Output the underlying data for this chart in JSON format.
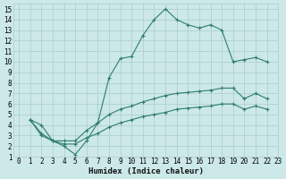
{
  "title": "",
  "xlabel": "Humidex (Indice chaleur)",
  "bg_color": "#cce8e8",
  "grid_color": "#aacccc",
  "line_color": "#2e7d6e",
  "xlim": [
    -0.5,
    23
  ],
  "ylim": [
    1,
    15.5
  ],
  "xticks": [
    0,
    1,
    2,
    3,
    4,
    5,
    6,
    7,
    8,
    9,
    10,
    11,
    12,
    13,
    14,
    15,
    16,
    17,
    18,
    19,
    20,
    21,
    22,
    23
  ],
  "yticks": [
    1,
    2,
    3,
    4,
    5,
    6,
    7,
    8,
    9,
    10,
    11,
    12,
    13,
    14,
    15
  ],
  "line1_x": [
    1,
    2,
    3,
    4,
    5,
    6,
    7,
    8,
    9,
    10,
    11,
    12,
    13,
    14,
    15,
    16,
    17,
    18,
    19,
    20,
    21,
    22
  ],
  "line1_y": [
    4.5,
    4.0,
    2.5,
    2.0,
    1.2,
    2.5,
    4.2,
    8.5,
    10.3,
    10.5,
    12.5,
    14.0,
    15.0,
    14.0,
    13.5,
    13.2,
    13.5,
    13.0,
    10.0,
    10.2,
    10.4,
    10.0
  ],
  "line2_x": [
    1,
    2,
    3,
    4,
    5,
    6,
    7,
    8,
    9,
    10,
    11,
    12,
    13,
    14,
    15,
    16,
    17,
    18,
    19,
    20,
    21,
    22
  ],
  "line2_y": [
    4.5,
    3.2,
    2.5,
    2.5,
    2.5,
    3.5,
    4.2,
    5.0,
    5.5,
    5.8,
    6.2,
    6.5,
    6.8,
    7.0,
    7.1,
    7.2,
    7.3,
    7.5,
    7.5,
    6.5,
    7.0,
    6.5
  ],
  "line3_x": [
    1,
    2,
    3,
    4,
    5,
    6,
    7,
    8,
    9,
    10,
    11,
    12,
    13,
    14,
    15,
    16,
    17,
    18,
    19,
    20,
    21,
    22
  ],
  "line3_y": [
    4.5,
    3.0,
    2.5,
    2.2,
    2.2,
    2.8,
    3.2,
    3.8,
    4.2,
    4.5,
    4.8,
    5.0,
    5.2,
    5.5,
    5.6,
    5.7,
    5.8,
    6.0,
    6.0,
    5.5,
    5.8,
    5.5
  ],
  "tick_fontsize": 5.5,
  "xlabel_fontsize": 6.5
}
